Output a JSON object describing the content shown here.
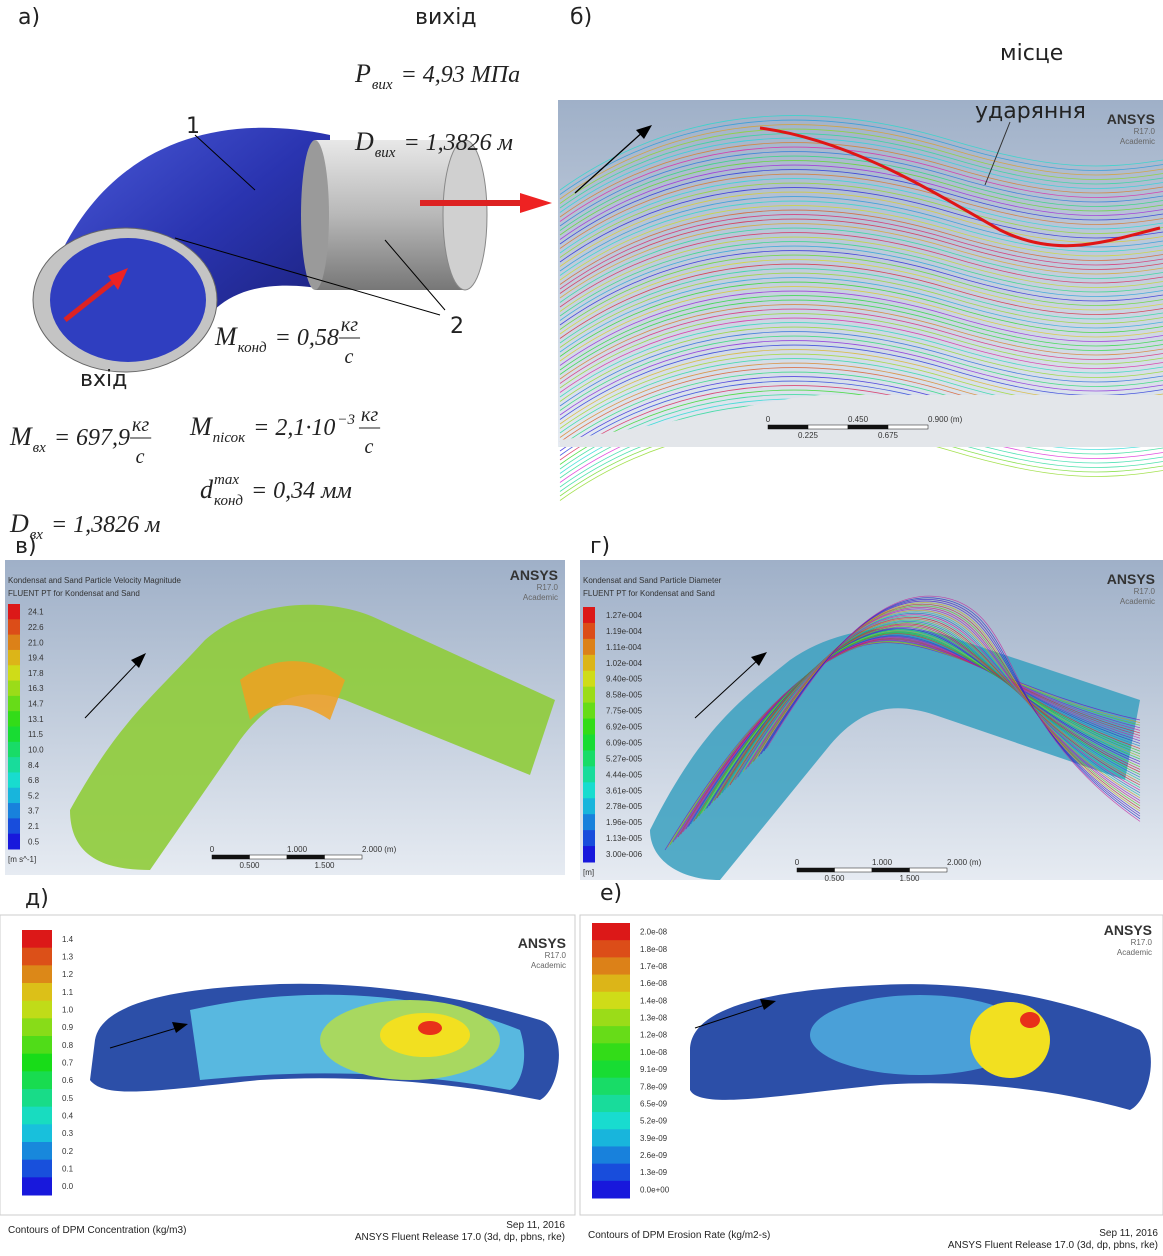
{
  "panel_a": {
    "label": "а)",
    "outlet_label": "вихід",
    "inlet_label": "вхід",
    "callout_1": "1",
    "callout_2": "2",
    "p_out": {
      "symbol": "P",
      "sub": "вих",
      "eq": "= 4,93 МПа"
    },
    "d_out": {
      "symbol": "D",
      "sub": "вих",
      "eq": "= 1,3826  м"
    },
    "m_cond": {
      "symbol": "M",
      "sub": "конд",
      "eq": "= 0,58",
      "num": "кг",
      "den": "с"
    },
    "m_in": {
      "symbol": "M",
      "sub": "вх",
      "eq": "= 697,9",
      "num": "кг",
      "den": "с"
    },
    "m_sand": {
      "symbol": "M",
      "sub": "пісок",
      "eq": "= 2,1·10",
      "exp": "−3",
      "num": "кг",
      "den": "с"
    },
    "d_cond": {
      "symbol": "d",
      "sup": "max",
      "sub": "конд",
      "eq": "= 0,34  мм"
    },
    "d_in": {
      "symbol": "D",
      "sub": "вх",
      "eq": "= 1,3826  м"
    }
  },
  "panel_b": {
    "label": "б)",
    "impact_1": "місце",
    "impact_2": "ударяння",
    "logo": {
      "name": "ANSYS",
      "version": "R17.0",
      "edition": "Academic"
    },
    "scale_top": [
      "0",
      "0.450",
      "0.900 (m)"
    ],
    "scale_bottom": [
      "0.225",
      "0.675"
    ]
  },
  "panel_c": {
    "label": "в)",
    "title": "Kondensat and Sand Particle Velocity Magnitude",
    "subtitle": "FLUENT PT for Kondensat and Sand",
    "logo": {
      "name": "ANSYS",
      "version": "R17.0",
      "edition": "Academic"
    },
    "colorbar": [
      "24.1",
      "22.6",
      "21.0",
      "19.4",
      "17.8",
      "16.3",
      "14.7",
      "13.1",
      "11.5",
      "10.0",
      "8.4",
      "6.8",
      "5.2",
      "3.7",
      "2.1",
      "0.5"
    ],
    "unit": "[m s^-1]",
    "scale_top": [
      "0",
      "1.000",
      "2.000 (m)"
    ],
    "scale_bottom": [
      "0.500",
      "1.500"
    ]
  },
  "panel_d": {
    "label": "г)",
    "title": "Kondensat and Sand Particle Diameter",
    "subtitle": "FLUENT PT for Kondensat and Sand",
    "logo": {
      "name": "ANSYS",
      "version": "R17.0",
      "edition": "Academic"
    },
    "colorbar": [
      "1.27e-004",
      "1.19e-004",
      "1.11e-004",
      "1.02e-004",
      "9.40e-005",
      "8.58e-005",
      "7.75e-005",
      "6.92e-005",
      "6.09e-005",
      "5.27e-005",
      "4.44e-005",
      "3.61e-005",
      "2.78e-005",
      "1.96e-005",
      "1.13e-005",
      "3.00e-006"
    ],
    "unit": "[m]",
    "scale_top": [
      "0",
      "1.000",
      "2.000 (m)"
    ],
    "scale_bottom": [
      "0.500",
      "1.500"
    ]
  },
  "panel_e": {
    "label": "д)",
    "logo": {
      "name": "ANSYS",
      "version": "R17.0",
      "edition": "Academic"
    },
    "colorbar": [
      "1.4",
      "1.3",
      "1.2",
      "1.1",
      "1.0",
      "0.9",
      "0.8",
      "0.7",
      "0.6",
      "0.5",
      "0.4",
      "0.3",
      "0.2",
      "0.1",
      "0.0"
    ],
    "caption": "Contours of DPM Concentration (kg/m3)",
    "date": "Sep 11, 2016",
    "release": "ANSYS Fluent Release 17.0 (3d, dp, pbns, rke)"
  },
  "panel_f": {
    "label": "е)",
    "logo": {
      "name": "ANSYS",
      "version": "R17.0",
      "edition": "Academic"
    },
    "colorbar": [
      "2.0e-08",
      "1.8e-08",
      "1.7e-08",
      "1.6e-08",
      "1.4e-08",
      "1.3e-08",
      "1.2e-08",
      "1.0e-08",
      "9.1e-09",
      "7.8e-09",
      "6.5e-09",
      "5.2e-09",
      "3.9e-09",
      "2.6e-09",
      "1.3e-09",
      "0.0e+00"
    ],
    "caption": "Contours of DPM Erosion Rate (kg/m2-s)",
    "date": "Sep 11, 2016",
    "release": "ANSYS Fluent Release 17.0 (3d, dp, pbns, rke)"
  }
}
